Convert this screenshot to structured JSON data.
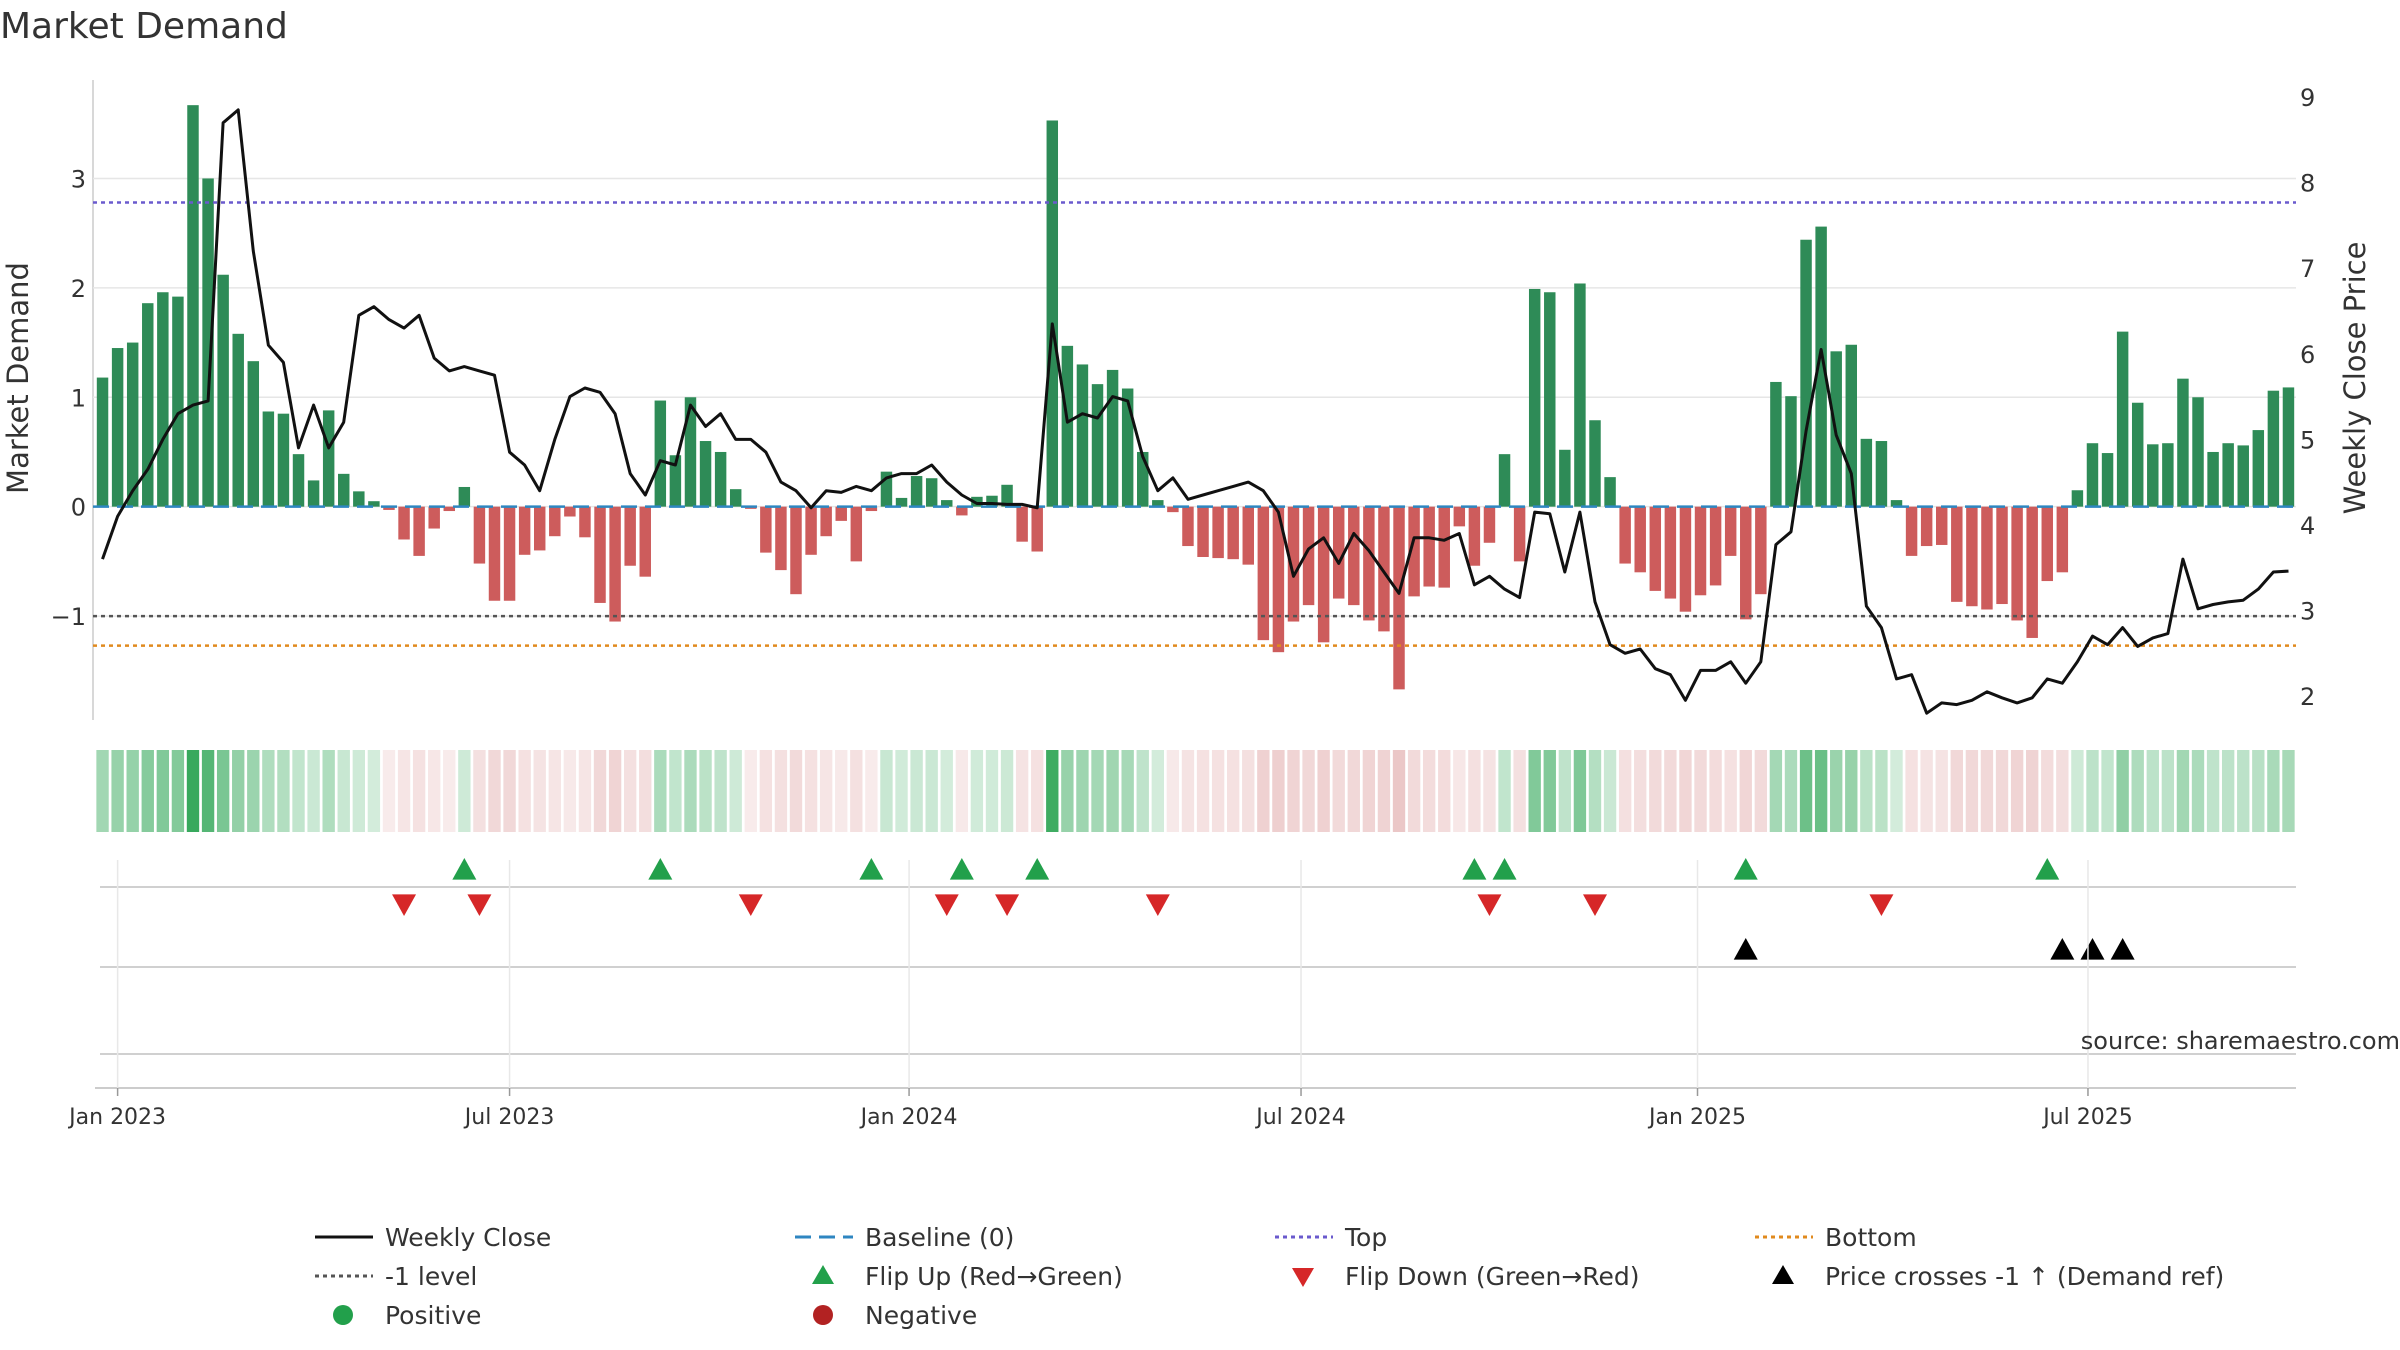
{
  "chart_data": {
    "type": "bar",
    "title": "Market Demand",
    "ylabel": "Market Demand",
    "y2label": "Weekly Close Price",
    "source": "source: sharemaestro.com",
    "ylim": [
      -1.95,
      3.9
    ],
    "y2lim": [
      1.72,
      9.2
    ],
    "yticks": [
      {
        "v": 3,
        "t": "3"
      },
      {
        "v": 2,
        "t": "2"
      },
      {
        "v": 1,
        "t": "1"
      },
      {
        "v": 0,
        "t": "0"
      },
      {
        "v": -1,
        "t": "−1"
      }
    ],
    "y2ticks": [
      {
        "v": 9,
        "t": "9"
      },
      {
        "v": 8,
        "t": "8"
      },
      {
        "v": 7,
        "t": "7"
      },
      {
        "v": 6,
        "t": "6"
      },
      {
        "v": 5,
        "t": "5"
      },
      {
        "v": 4,
        "t": "4"
      },
      {
        "v": 3,
        "t": "3"
      },
      {
        "v": 2,
        "t": "2"
      }
    ],
    "xticks": [
      {
        "week": 1,
        "t": "Jan 2023"
      },
      {
        "week": 27,
        "t": "Jul 2023"
      },
      {
        "week": 53.5,
        "t": "Jan 2024"
      },
      {
        "week": 79.5,
        "t": "Jul 2024"
      },
      {
        "week": 105.8,
        "t": "Jan 2025"
      },
      {
        "week": 131.7,
        "t": "Jul 2025"
      }
    ],
    "levels": {
      "top": 2.78,
      "minus_one": -1.0,
      "bottom": -1.27,
      "baseline": 0
    },
    "demand": [
      1.18,
      1.45,
      1.5,
      1.86,
      1.96,
      1.92,
      3.67,
      3.0,
      2.12,
      1.58,
      1.33,
      0.87,
      0.85,
      0.48,
      0.24,
      0.88,
      0.3,
      0.14,
      0.05,
      -0.03,
      -0.3,
      -0.45,
      -0.2,
      -0.04,
      0.18,
      -0.52,
      -0.86,
      -0.86,
      -0.44,
      -0.4,
      -0.27,
      -0.09,
      -0.28,
      -0.88,
      -1.05,
      -0.54,
      -0.64,
      0.97,
      0.47,
      1.0,
      0.6,
      0.5,
      0.16,
      -0.02,
      -0.42,
      -0.58,
      -0.8,
      -0.44,
      -0.27,
      -0.13,
      -0.5,
      -0.04,
      0.32,
      0.08,
      0.28,
      0.26,
      0.06,
      -0.08,
      0.09,
      0.1,
      0.2,
      -0.32,
      -0.41,
      3.53,
      1.47,
      1.3,
      1.12,
      1.25,
      1.08,
      0.5,
      0.06,
      -0.05,
      -0.36,
      -0.46,
      -0.47,
      -0.48,
      -0.53,
      -1.22,
      -1.33,
      -1.05,
      -0.9,
      -1.24,
      -0.84,
      -0.9,
      -1.04,
      -1.14,
      -1.67,
      -0.82,
      -0.73,
      -0.74,
      -0.18,
      -0.54,
      -0.33,
      0.48,
      -0.5,
      1.99,
      1.96,
      0.52,
      2.04,
      0.79,
      0.27,
      -0.52,
      -0.6,
      -0.77,
      -0.84,
      -0.96,
      -0.81,
      -0.72,
      -0.45,
      -1.03,
      -0.8,
      1.14,
      1.01,
      2.44,
      2.56,
      1.42,
      1.48,
      0.62,
      0.6,
      0.06,
      -0.45,
      -0.36,
      -0.35,
      -0.87,
      -0.91,
      -0.94,
      -0.89,
      -1.04,
      -1.2,
      -0.68,
      -0.6,
      0.15,
      0.58,
      0.49,
      1.6,
      0.95,
      0.57,
      0.58,
      1.17,
      1.0,
      0.5,
      0.58,
      0.56,
      0.7,
      1.06,
      1.09
    ],
    "price": [
      3.6,
      4.1,
      4.4,
      4.65,
      5.0,
      5.3,
      5.4,
      5.45,
      8.7,
      8.85,
      7.2,
      6.1,
      5.9,
      4.9,
      5.4,
      4.9,
      5.2,
      6.45,
      6.55,
      6.4,
      6.3,
      6.45,
      5.95,
      5.8,
      5.85,
      5.8,
      5.75,
      4.85,
      4.7,
      4.4,
      5.0,
      5.5,
      5.6,
      5.55,
      5.3,
      4.6,
      4.35,
      4.75,
      4.7,
      5.4,
      5.15,
      5.3,
      5.0,
      5.0,
      4.85,
      4.5,
      4.4,
      4.2,
      4.4,
      4.38,
      4.45,
      4.4,
      4.55,
      4.6,
      4.6,
      4.7,
      4.5,
      4.35,
      4.25,
      4.25,
      4.24,
      4.24,
      4.2,
      6.35,
      5.2,
      5.3,
      5.25,
      5.5,
      5.45,
      4.8,
      4.4,
      4.55,
      4.3,
      4.35,
      4.4,
      4.45,
      4.5,
      4.4,
      4.15,
      3.4,
      3.72,
      3.85,
      3.55,
      3.9,
      3.7,
      3.45,
      3.2,
      3.85,
      3.85,
      3.82,
      3.9,
      3.3,
      3.4,
      3.25,
      3.15,
      4.15,
      4.13,
      3.45,
      4.15,
      3.1,
      2.6,
      2.5,
      2.55,
      2.32,
      2.25,
      1.95,
      2.3,
      2.3,
      2.4,
      2.15,
      2.4,
      3.77,
      3.92,
      5.1,
      6.05,
      5.05,
      4.6,
      3.05,
      2.8,
      2.2,
      2.25,
      1.8,
      1.92,
      1.9,
      1.95,
      2.05,
      1.98,
      1.92,
      1.98,
      2.2,
      2.15,
      2.4,
      2.7,
      2.6,
      2.8,
      2.58,
      2.68,
      2.73,
      3.6,
      3.02,
      3.07,
      3.1,
      3.12,
      3.25,
      3.45,
      3.46
    ],
    "strip_values": [
      1.18,
      1.45,
      1.5,
      1.86,
      1.96,
      1.92,
      3.67,
      3.0,
      2.12,
      1.58,
      1.33,
      0.87,
      0.85,
      0.48,
      0.24,
      0.88,
      0.3,
      0.14,
      0.05,
      -0.03,
      -0.3,
      -0.45,
      -0.2,
      -0.04,
      0.18,
      -0.52,
      -0.86,
      -0.86,
      -0.44,
      -0.4,
      -0.27,
      -0.09,
      -0.28,
      -0.88,
      -1.05,
      -0.54,
      -0.64,
      0.97,
      0.47,
      1.0,
      0.6,
      0.5,
      0.16,
      -0.02,
      -0.42,
      -0.58,
      -0.8,
      -0.44,
      -0.27,
      -0.13,
      -0.5,
      -0.04,
      0.32,
      0.08,
      0.28,
      0.26,
      0.06,
      -0.08,
      0.09,
      0.1,
      0.2,
      -0.32,
      -0.41,
      3.53,
      1.47,
      1.3,
      1.12,
      1.25,
      1.08,
      0.5,
      0.06,
      -0.05,
      -0.36,
      -0.46,
      -0.47,
      -0.48,
      -0.53,
      -1.22,
      -1.33,
      -1.05,
      -0.9,
      -1.24,
      -0.84,
      -0.9,
      -1.04,
      -1.14,
      -1.67,
      -0.82,
      -0.73,
      -0.74,
      -0.18,
      -0.54,
      -0.33,
      0.48,
      -0.5,
      1.99,
      1.96,
      0.52,
      2.04,
      0.79,
      0.27,
      -0.52,
      -0.6,
      -0.77,
      -0.84,
      -0.96,
      -0.81,
      -0.72,
      -0.45,
      -1.03,
      -0.8,
      1.14,
      1.01,
      2.44,
      2.56,
      1.42,
      1.48,
      0.62,
      0.6,
      0.06,
      -0.45,
      -0.36,
      -0.35,
      -0.87,
      -0.91,
      -0.94,
      -0.89,
      -1.04,
      -1.2,
      -0.68,
      -0.6,
      0.15,
      0.58,
      0.49,
      1.6,
      0.95,
      0.57,
      0.58,
      1.17,
      1.0,
      0.5,
      0.58,
      0.56,
      0.7,
      1.06,
      1.09
    ],
    "flip_up_weeks": [
      24,
      37,
      51,
      57,
      62,
      91,
      93,
      109,
      129
    ],
    "flip_down_weeks": [
      20,
      25,
      43,
      56,
      60,
      70,
      92,
      99,
      118
    ],
    "price_cross_weeks": [
      109,
      130,
      132,
      134
    ],
    "legend": [
      {
        "label": "Weekly Close",
        "kind": "line-solid",
        "color": "#111111"
      },
      {
        "label": "Baseline (0)",
        "kind": "line-dash",
        "color": "#2e86c1"
      },
      {
        "label": "Top",
        "kind": "line-dot",
        "color": "#6a5acd"
      },
      {
        "label": "Bottom",
        "kind": "line-dot",
        "color": "#e08a1e"
      },
      {
        "label": "-1 level",
        "kind": "line-dot",
        "color": "#555555"
      },
      {
        "label": "Flip Up (Red→Green)",
        "kind": "tri-up",
        "color": "#22a04b"
      },
      {
        "label": "Flip Down (Green→Red)",
        "kind": "tri-down",
        "color": "#d62728"
      },
      {
        "label": "Price crosses -1 ↑ (Demand ref)",
        "kind": "tri-up",
        "color": "#000000"
      },
      {
        "label": "Positive",
        "kind": "dot",
        "color": "#22a04b"
      },
      {
        "label": "Negative",
        "kind": "dot",
        "color": "#b22222"
      }
    ],
    "colors": {
      "positive": "#2e8b57",
      "negative": "#cd5c5c",
      "grid": "#e6e6e6"
    }
  }
}
